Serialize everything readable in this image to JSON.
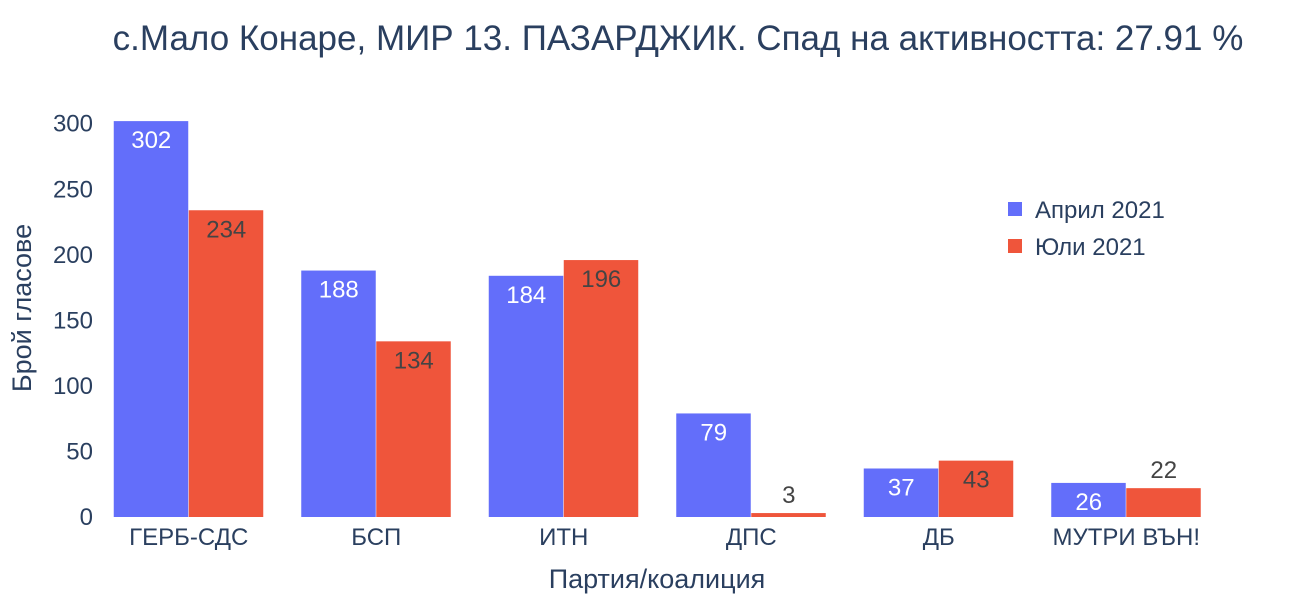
{
  "chart_data": {
    "type": "bar",
    "title": "с.Мало Конаре, МИР 13. ПАЗАРДЖИК. Спад на активността: 27.91 %",
    "xlabel": "Партия/коалиция",
    "ylabel": "Брой гласове",
    "categories": [
      "ГЕРБ-СДС",
      "БСП",
      "ИТН",
      "ДПС",
      "ДБ",
      "МУТРИ ВЪН!"
    ],
    "series": [
      {
        "name": "Април 2021",
        "values": [
          302,
          188,
          184,
          79,
          37,
          26
        ],
        "color": "#636efa"
      },
      {
        "name": "Юли 2021",
        "values": [
          234,
          134,
          196,
          3,
          43,
          22
        ],
        "color": "#ef553b"
      }
    ],
    "ylim": [
      0,
      312
    ],
    "yticks": [
      0,
      50,
      100,
      150,
      200,
      250,
      300
    ],
    "grid": false,
    "legend_position": "top-right"
  }
}
